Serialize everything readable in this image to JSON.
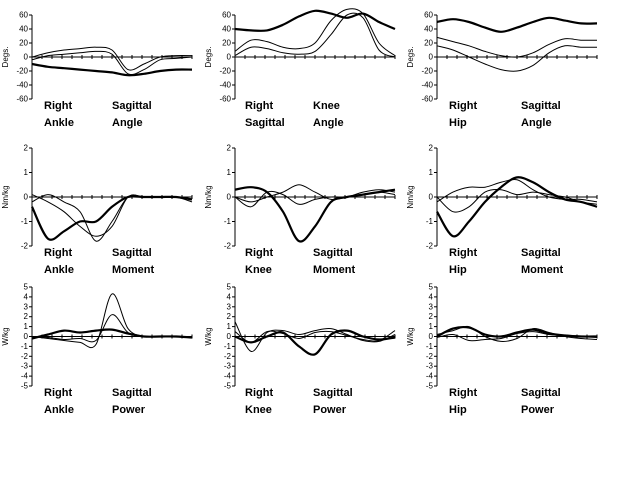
{
  "chart_data": [
    {
      "type": "line",
      "ylabel": "Degs.",
      "ylim": [
        -60,
        60
      ],
      "yticks": [
        "60",
        "40",
        "20",
        "0",
        "-20",
        "-40",
        "-60"
      ],
      "caption": [
        "Right",
        "Sagittal",
        "Ankle",
        "Angle"
      ],
      "x": [
        0,
        10,
        20,
        30,
        40,
        50,
        60,
        70,
        80,
        90,
        100
      ],
      "series": [
        {
          "values": [
            -10,
            -14,
            -16,
            -18,
            -20,
            -22,
            -26,
            -24,
            -20,
            -18,
            -18
          ],
          "weight": "bold"
        },
        {
          "values": [
            0,
            6,
            10,
            12,
            14,
            10,
            -18,
            -10,
            0,
            2,
            2
          ]
        },
        {
          "values": [
            -4,
            2,
            4,
            6,
            8,
            4,
            -24,
            -18,
            -4,
            -2,
            0
          ]
        }
      ]
    },
    {
      "type": "line",
      "ylabel": "Degs.",
      "ylim": [
        -60,
        60
      ],
      "yticks": [
        "60",
        "40",
        "20",
        "0",
        "-20",
        "-40",
        "-60"
      ],
      "caption": [
        "Right",
        "Knee",
        "Sagittal",
        "Angle"
      ],
      "x": [
        0,
        10,
        20,
        30,
        40,
        50,
        60,
        70,
        80,
        90,
        100
      ],
      "series": [
        {
          "values": [
            40,
            38,
            38,
            46,
            58,
            66,
            62,
            56,
            62,
            50,
            40
          ],
          "weight": "bold"
        },
        {
          "values": [
            8,
            24,
            22,
            14,
            12,
            20,
            52,
            68,
            62,
            20,
            2
          ]
        },
        {
          "values": [
            2,
            14,
            12,
            6,
            4,
            8,
            32,
            60,
            56,
            10,
            0
          ]
        }
      ]
    },
    {
      "type": "line",
      "ylabel": "Degs.",
      "ylim": [
        -60,
        60
      ],
      "yticks": [
        "60",
        "40",
        "20",
        "0",
        "-20",
        "-40",
        "-60"
      ],
      "caption": [
        "Right",
        "Sagittal",
        "Hip",
        "Angle"
      ],
      "x": [
        0,
        10,
        20,
        30,
        40,
        50,
        60,
        70,
        80,
        90,
        100
      ],
      "series": [
        {
          "values": [
            50,
            54,
            50,
            42,
            36,
            42,
            50,
            56,
            52,
            48,
            48
          ],
          "weight": "bold"
        },
        {
          "values": [
            28,
            22,
            16,
            8,
            2,
            0,
            6,
            18,
            26,
            24,
            24
          ]
        },
        {
          "values": [
            16,
            10,
            0,
            -10,
            -18,
            -20,
            -12,
            6,
            16,
            14,
            14
          ]
        }
      ]
    },
    {
      "type": "line",
      "ylabel": "Nm/kg",
      "ylim": [
        -2,
        2
      ],
      "yticks": [
        "2",
        "1",
        "0",
        "-1",
        "-2"
      ],
      "caption": [
        "Right",
        "Sagittal",
        "Ankle",
        "Moment"
      ],
      "x": [
        0,
        10,
        20,
        30,
        40,
        50,
        60,
        70,
        80,
        90,
        100
      ],
      "series": [
        {
          "values": [
            -0.4,
            -1.7,
            -1.4,
            -1.0,
            -1.0,
            -0.4,
            0,
            0,
            0,
            0,
            -0.1
          ],
          "weight": "bold"
        },
        {
          "values": [
            0.1,
            -0.2,
            -0.6,
            -1.2,
            -1.6,
            -1.2,
            0,
            0,
            0,
            0,
            -0.2
          ]
        },
        {
          "values": [
            -0.2,
            0.1,
            -0.2,
            -0.6,
            -1.8,
            -1.0,
            0,
            0,
            0,
            0,
            -0.1
          ]
        }
      ]
    },
    {
      "type": "line",
      "ylabel": "Nm/kg",
      "ylim": [
        -2,
        2
      ],
      "yticks": [
        "2",
        "1",
        "0",
        "-1",
        "-2"
      ],
      "caption": [
        "Right",
        "Sagittal",
        "Knee",
        "Moment"
      ],
      "x": [
        0,
        10,
        20,
        30,
        40,
        50,
        60,
        70,
        80,
        90,
        100
      ],
      "series": [
        {
          "values": [
            0.3,
            0.4,
            0.2,
            -0.6,
            -1.8,
            -1.2,
            -0.2,
            0,
            0.1,
            0.2,
            0.3
          ],
          "weight": "bold"
        },
        {
          "values": [
            0,
            -0.2,
            0,
            0.2,
            0.5,
            0.2,
            -0.1,
            0,
            0.2,
            0.3,
            0.2
          ]
        },
        {
          "values": [
            0,
            -0.4,
            0.2,
            0.1,
            -0.3,
            -0.1,
            0,
            0,
            0.1,
            0.2,
            0.1
          ]
        }
      ]
    },
    {
      "type": "line",
      "ylabel": "Nm/kg",
      "ylim": [
        -2,
        2
      ],
      "yticks": [
        "2",
        "1",
        "0",
        "-1",
        "-2"
      ],
      "caption": [
        "Right",
        "Sagittal",
        "Hip",
        "Moment"
      ],
      "x": [
        0,
        10,
        20,
        30,
        40,
        50,
        60,
        70,
        80,
        90,
        100
      ],
      "series": [
        {
          "values": [
            -0.6,
            -1.6,
            -1.0,
            -0.2,
            0.4,
            0.8,
            0.6,
            0.2,
            -0.1,
            -0.2,
            -0.4
          ],
          "weight": "bold"
        },
        {
          "values": [
            -0.2,
            0.2,
            0.4,
            0.4,
            0.6,
            0.7,
            0.3,
            0,
            -0.1,
            -0.1,
            -0.2
          ]
        },
        {
          "values": [
            0,
            -0.6,
            -0.4,
            0.2,
            0.3,
            0.1,
            0.2,
            0.1,
            0,
            -0.2,
            -0.3
          ]
        }
      ]
    },
    {
      "type": "line",
      "ylabel": "W/kg",
      "ylim": [
        -5,
        5
      ],
      "yticks": [
        "5",
        "4",
        "3",
        "2",
        "1",
        "0",
        "-1",
        "-2",
        "-3",
        "-4",
        "-5"
      ],
      "caption": [
        "Right",
        "Sagittal",
        "Ankle",
        "Power"
      ],
      "x": [
        0,
        10,
        20,
        30,
        40,
        50,
        60,
        70,
        80,
        90,
        100
      ],
      "series": [
        {
          "values": [
            -0.2,
            0.2,
            0.6,
            0.4,
            0.6,
            0.7,
            0.3,
            0,
            0,
            0,
            -0.1
          ],
          "weight": "bold"
        },
        {
          "values": [
            0,
            -0.2,
            -0.4,
            -0.6,
            -0.8,
            4.3,
            0.8,
            0,
            0,
            0,
            0
          ]
        },
        {
          "values": [
            0,
            -0.1,
            -0.3,
            -0.2,
            -0.4,
            2.2,
            0.4,
            0,
            0,
            0,
            0
          ]
        }
      ]
    },
    {
      "type": "line",
      "ylabel": "W/kg",
      "ylim": [
        -5,
        5
      ],
      "yticks": [
        "5",
        "4",
        "3",
        "2",
        "1",
        "0",
        "-1",
        "-2",
        "-3",
        "-4",
        "-5"
      ],
      "caption": [
        "Right",
        "Sagittal",
        "Knee",
        "Power"
      ],
      "x": [
        0,
        10,
        20,
        30,
        40,
        50,
        60,
        70,
        80,
        90,
        100
      ],
      "series": [
        {
          "values": [
            0,
            -0.6,
            0,
            0.4,
            -1.0,
            -1.8,
            0.2,
            0.6,
            0,
            -0.3,
            -0.1
          ],
          "weight": "bold"
        },
        {
          "values": [
            1.5,
            -1.5,
            0.4,
            0.6,
            0.2,
            0.6,
            0.8,
            0.2,
            -0.4,
            -0.5,
            0.2
          ]
        },
        {
          "values": [
            0.5,
            -0.6,
            0.5,
            0.3,
            -0.2,
            0.4,
            0.5,
            0.1,
            -0.3,
            -0.4,
            0.6
          ]
        }
      ]
    },
    {
      "type": "line",
      "ylabel": "W/kg",
      "ylim": [
        -5,
        5
      ],
      "yticks": [
        "5",
        "4",
        "3",
        "2",
        "1",
        "0",
        "-1",
        "-2",
        "-3",
        "-4",
        "-5"
      ],
      "caption": [
        "Right",
        "Sagittal",
        "Hip",
        "Power"
      ],
      "x": [
        0,
        10,
        20,
        30,
        40,
        50,
        60,
        70,
        80,
        90,
        100
      ],
      "series": [
        {
          "values": [
            0,
            0.8,
            0.9,
            0.2,
            0,
            0.4,
            0.7,
            0.3,
            0.1,
            0,
            0
          ],
          "weight": "bold"
        },
        {
          "values": [
            0.2,
            0.6,
            1.0,
            0,
            -0.5,
            -0.2,
            0.8,
            0.4,
            0,
            -0.2,
            -0.3
          ]
        },
        {
          "values": [
            -0.1,
            0.2,
            -0.4,
            -0.3,
            -0.2,
            0.3,
            0.5,
            0.2,
            0.1,
            0,
            -0.1
          ]
        }
      ]
    }
  ]
}
